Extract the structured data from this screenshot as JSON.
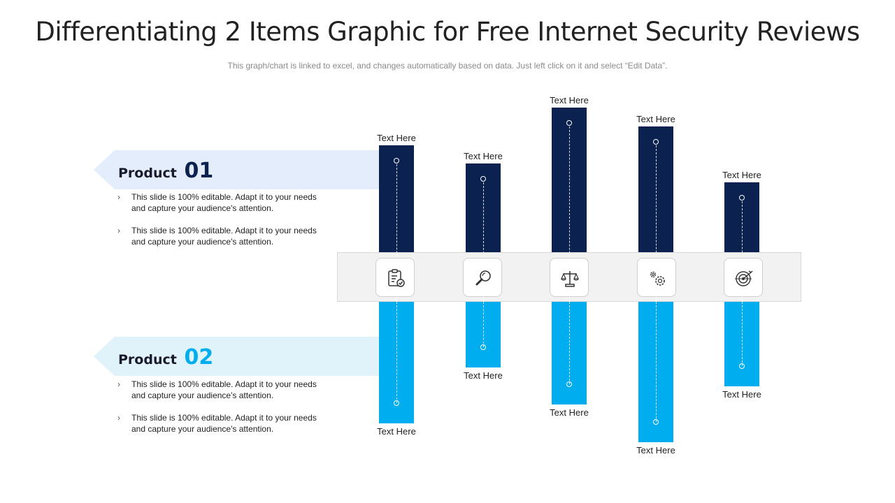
{
  "title": "Differentiating 2 Items Graphic for Free Internet Security Reviews",
  "subtitle": "This graph/chart is linked to excel, and changes automatically based on data. Just left click on it and select “Edit Data”.",
  "colors": {
    "product1": "#0b2150",
    "product2": "#00aeef",
    "product1_arrow": "#e3edfb",
    "product2_arrow": "#e0f3fb"
  },
  "products": [
    {
      "label": "Product",
      "number": "01",
      "bullets": [
        "This slide is 100% editable. Adapt it to your needs and capture your audience's attention.",
        "This slide is 100% editable. Adapt it to your needs and capture your audience's attention."
      ]
    },
    {
      "label": "Product",
      "number": "02",
      "bullets": [
        "This slide is 100% editable. Adapt it to your needs and capture your audience's attention.",
        "This slide is 100% editable. Adapt it to your needs and capture your audience's attention."
      ]
    }
  ],
  "chart_data": {
    "type": "bar",
    "categories": [
      "clipboard-check-icon",
      "magnifier-icon",
      "scale-icon",
      "gears-icon",
      "target-icon"
    ],
    "series": [
      {
        "values": [
          153,
          127,
          207,
          180,
          100
        ],
        "labels": [
          "Text Here",
          "Text Here",
          "Text Here",
          "Text Here",
          "Text Here"
        ]
      },
      {
        "values": [
          174,
          94,
          147,
          201,
          121
        ],
        "labels": [
          "Text Here",
          "Text Here",
          "Text Here",
          "Text Here",
          "Text Here"
        ]
      }
    ]
  }
}
